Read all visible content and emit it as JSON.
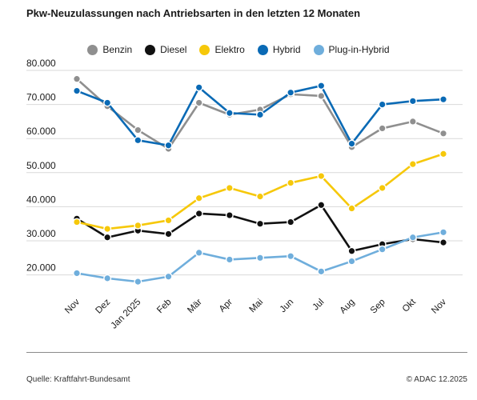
{
  "title": "Pkw-Neuzulassungen nach Antriebsarten in den letzten 12 Monaten",
  "source": "Quelle: Kraftfahrt-Bundesamt",
  "credit": "© ADAC 12.2025",
  "chart_data": {
    "type": "line",
    "title": "Pkw-Neuzulassungen nach Antriebsarten in den letzten 12 Monaten",
    "categories": [
      "Nov",
      "Dez",
      "Jan 2025",
      "Feb",
      "Mär",
      "Apr",
      "Mai",
      "Jun",
      "Jul",
      "Aug",
      "Sep",
      "Okt",
      "Nov"
    ],
    "y_ticks": [
      20000,
      30000,
      40000,
      50000,
      60000,
      70000,
      80000
    ],
    "y_tick_labels": [
      "20.000",
      "30.000",
      "40.000",
      "50.000",
      "60.000",
      "70.000",
      "80.000"
    ],
    "ylim": [
      20000,
      80000
    ],
    "grid": true,
    "legend_position": "top",
    "series": [
      {
        "name": "Benzin",
        "color": "#8f8f8f",
        "values": [
          77500,
          69500,
          62500,
          57000,
          70500,
          67000,
          68500,
          73000,
          72500,
          57500,
          63000,
          65000,
          61500
        ]
      },
      {
        "name": "Diesel",
        "color": "#111111",
        "values": [
          36500,
          31000,
          33000,
          32000,
          38000,
          37500,
          35000,
          35500,
          40500,
          27000,
          29000,
          30500,
          29500
        ]
      },
      {
        "name": "Elektro",
        "color": "#f6c80a",
        "values": [
          35500,
          33500,
          34500,
          36000,
          42500,
          45500,
          43000,
          47000,
          49000,
          39500,
          45500,
          52500,
          55500
        ]
      },
      {
        "name": "Hybrid",
        "color": "#0a6ab5",
        "values": [
          74000,
          70500,
          59500,
          58000,
          75000,
          67500,
          67000,
          73500,
          75500,
          58500,
          70000,
          71000,
          71500
        ]
      },
      {
        "name": "Plug-in-Hybrid",
        "color": "#6faedc",
        "values": [
          20500,
          19000,
          18000,
          19500,
          26500,
          24500,
          25000,
          25500,
          21000,
          24000,
          27500,
          31000,
          32500
        ]
      }
    ]
  }
}
